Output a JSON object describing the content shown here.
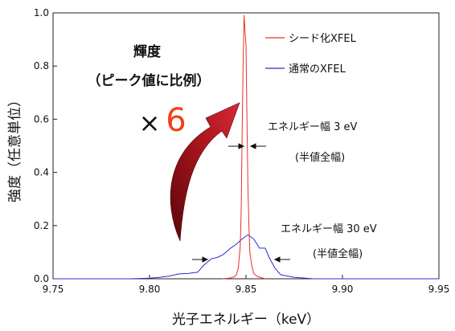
{
  "chart_data": {
    "type": "line",
    "xlabel": "光子エネルギー（keV）",
    "ylabel": "強度（任意単位）",
    "xlim": [
      9.75,
      9.95
    ],
    "ylim": [
      0,
      1.0
    ],
    "xticks": [
      "9.75",
      "9.80",
      "9.85",
      "9.90",
      "9.95"
    ],
    "yticks": [
      "0.0",
      "0.2",
      "0.4",
      "0.6",
      "0.8",
      "1.0"
    ],
    "legend_position": "top-right",
    "series": [
      {
        "name": "シード化XFEL",
        "color": "#e8302a",
        "points": [
          [
            9.838,
            0.0
          ],
          [
            9.842,
            0.003
          ],
          [
            9.844,
            0.008
          ],
          [
            9.845,
            0.015
          ],
          [
            9.846,
            0.04
          ],
          [
            9.847,
            0.12
          ],
          [
            9.8475,
            0.25
          ],
          [
            9.848,
            0.55
          ],
          [
            9.8485,
            0.8
          ],
          [
            9.849,
            0.99
          ],
          [
            9.8495,
            0.93
          ],
          [
            9.85,
            0.88
          ],
          [
            9.8505,
            0.6
          ],
          [
            9.851,
            0.35
          ],
          [
            9.8515,
            0.2
          ],
          [
            9.852,
            0.1
          ],
          [
            9.853,
            0.05
          ],
          [
            9.854,
            0.02
          ],
          [
            9.856,
            0.008
          ],
          [
            9.86,
            0.0
          ]
        ]
      },
      {
        "name": "通常のXFEL",
        "color": "#2b2bd0",
        "points": [
          [
            9.75,
            0.0
          ],
          [
            9.79,
            0.0
          ],
          [
            9.8,
            0.002
          ],
          [
            9.805,
            0.005
          ],
          [
            9.81,
            0.01
          ],
          [
            9.815,
            0.018
          ],
          [
            9.82,
            0.02
          ],
          [
            9.825,
            0.025
          ],
          [
            9.828,
            0.05
          ],
          [
            9.832,
            0.075
          ],
          [
            9.835,
            0.08
          ],
          [
            9.838,
            0.09
          ],
          [
            9.842,
            0.115
          ],
          [
            9.845,
            0.13
          ],
          [
            9.848,
            0.15
          ],
          [
            9.851,
            0.165
          ],
          [
            9.854,
            0.15
          ],
          [
            9.857,
            0.115
          ],
          [
            9.86,
            0.115
          ],
          [
            9.862,
            0.08
          ],
          [
            9.865,
            0.04
          ],
          [
            9.868,
            0.015
          ],
          [
            9.875,
            0.005
          ],
          [
            9.885,
            0.0
          ],
          [
            9.95,
            0.0
          ]
        ]
      }
    ],
    "annotations": {
      "brightness_line1": "輝度",
      "brightness_line2": "（ピーク値に比例）",
      "times": "×",
      "factor": "6",
      "width_seeded": "エネルギー幅 3 eV",
      "width_seeded_sub": "(半値全幅)",
      "width_sase": "エネルギー幅 30 eV",
      "width_sase_sub": "(半値全幅)"
    },
    "colors": {
      "factor": "#f0401a",
      "arrow_dark": "#8a0f14",
      "arrow_light": "#c81e28"
    }
  }
}
